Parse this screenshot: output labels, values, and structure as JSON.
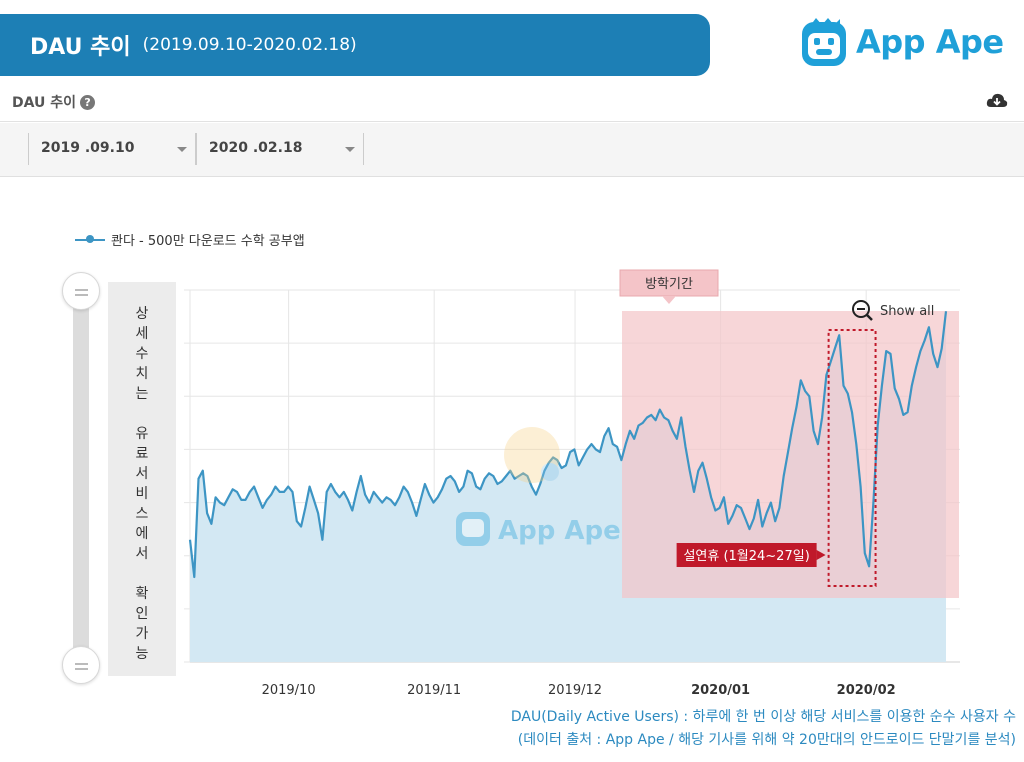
{
  "title": {
    "main": "DAU 추이",
    "range": "(2019.09.10-2020.02.18)"
  },
  "logo": {
    "brand": "App Ape"
  },
  "subheader": {
    "label": "DAU 추이",
    "help_icon": "question-circle-icon",
    "download_icon": "cloud-download-icon"
  },
  "date_range": {
    "start": "2019 .09.10",
    "end": "2020 .02.18"
  },
  "side_note_chars": [
    "상",
    "세",
    "수",
    "치",
    "는",
    "",
    "유",
    "료",
    "서",
    "비",
    "스",
    "에",
    "서",
    "",
    "확",
    "인",
    "가",
    "능"
  ],
  "show_all_label": "Show all",
  "footer": {
    "line1": "DAU(Daily Active Users) : 하루에 한 번 이상 해당 서비스를 이용한 순수 사용자 수",
    "line2": "(데이터 출처 : App Ape / 해당 기사를 위해 약 20만대의 안드로이드 단말기를 분석)"
  },
  "colors": {
    "line": "#3d95c4",
    "area": "#d3e8f3",
    "banner": "#1d7fb5",
    "vacation": "#f4c4c8",
    "holiday": "#c0192a"
  },
  "chart_data": {
    "type": "area",
    "series": [
      {
        "name": "콴다 - 500만 다운로드 수학 공부앱"
      }
    ],
    "x_start": "2019-09-10",
    "x_end": "2020-02-18",
    "xticks": [
      {
        "label": "2019/10",
        "date": "2019-10-01",
        "bold": false
      },
      {
        "label": "2019/11",
        "date": "2019-11-01",
        "bold": false
      },
      {
        "label": "2019/12",
        "date": "2019-12-01",
        "bold": false
      },
      {
        "label": "2020/01",
        "date": "2020-01-01",
        "bold": true
      },
      {
        "label": "2020/02",
        "date": "2020-02-01",
        "bold": true
      }
    ],
    "ylim": [
      0,
      7
    ],
    "gridlines_y": 7,
    "values": [
      2.3,
      1.6,
      3.45,
      3.6,
      2.8,
      2.6,
      3.1,
      3.0,
      2.95,
      3.1,
      3.25,
      3.2,
      3.05,
      3.05,
      3.2,
      3.3,
      3.1,
      2.9,
      3.05,
      3.15,
      3.3,
      3.2,
      3.2,
      3.3,
      3.2,
      2.65,
      2.55,
      2.9,
      3.3,
      3.05,
      2.8,
      2.3,
      3.2,
      3.35,
      3.2,
      3.1,
      3.2,
      3.05,
      2.85,
      3.2,
      3.5,
      3.15,
      3.0,
      3.2,
      3.1,
      3.0,
      3.1,
      3.05,
      2.95,
      3.1,
      3.3,
      3.2,
      3.0,
      2.75,
      3.05,
      3.35,
      3.15,
      3.0,
      3.1,
      3.25,
      3.45,
      3.5,
      3.4,
      3.2,
      3.3,
      3.6,
      3.55,
      3.3,
      3.25,
      3.45,
      3.55,
      3.5,
      3.35,
      3.4,
      3.5,
      3.6,
      3.45,
      3.5,
      3.55,
      3.5,
      3.3,
      3.15,
      3.35,
      3.6,
      3.75,
      3.85,
      3.8,
      3.65,
      3.7,
      3.95,
      4.0,
      3.7,
      3.85,
      4.0,
      4.1,
      4.0,
      3.95,
      4.25,
      4.4,
      4.1,
      4.05,
      3.8,
      4.1,
      4.35,
      4.2,
      4.45,
      4.5,
      4.6,
      4.65,
      4.55,
      4.75,
      4.6,
      4.55,
      4.35,
      4.2,
      4.6,
      4.05,
      3.6,
      3.2,
      3.6,
      3.75,
      3.45,
      3.1,
      2.85,
      2.9,
      3.1,
      2.6,
      2.75,
      2.95,
      2.9,
      2.7,
      2.5,
      2.7,
      3.05,
      2.55,
      2.8,
      3.0,
      2.65,
      2.9,
      3.5,
      3.95,
      4.4,
      4.8,
      5.3,
      5.1,
      5.0,
      4.35,
      4.1,
      4.6,
      5.4,
      5.65,
      5.9,
      6.15,
      5.2,
      5.05,
      4.7,
      4.1,
      3.3,
      2.05,
      1.8,
      3.0,
      4.45,
      5.2,
      5.85,
      5.8,
      5.15,
      4.95,
      4.65,
      4.7,
      5.2,
      5.55,
      5.85,
      6.05,
      6.3,
      5.8,
      5.55,
      5.9,
      6.6
    ],
    "annotations": [
      {
        "label": "방학기간",
        "start": "2019-12-11",
        "end": "2020-02-18"
      },
      {
        "label": "설연휴 (1월24~27일)",
        "start": "2020-01-24",
        "end": "2020-02-03"
      }
    ]
  }
}
